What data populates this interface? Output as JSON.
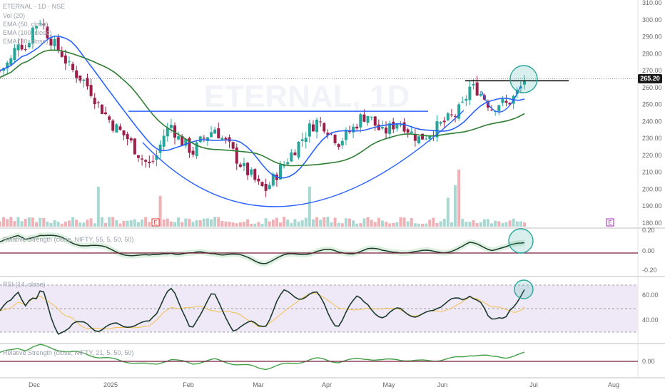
{
  "header": {
    "title": "ETERNAL · 1D · NSE",
    "indicators": [
      "Vol (20)",
      "EMA (50, close)",
      "EMA (100, close)",
      "EMA (30, close)"
    ]
  },
  "watermark": "ETERNAL, 1D",
  "last_price_label": "265.20",
  "colors": {
    "up": "#26a69a",
    "down": "#9c1f4b",
    "ema_blue": "#2962ff",
    "ema_green": "#2e7d32",
    "osc_line": "#1b3a2c",
    "osc_green_glow": "#c8e6c9",
    "osc_red": "#c2185b",
    "rsi_band": "#efe9f7",
    "rsi_ma": "#f2c14e"
  },
  "pane_labels": {
    "rs_top": "Relative Strength (close, NIFTY, 55, 5, 50, 50)",
    "rsi": "RSI (14, close)",
    "rs_bottom": "Relative Strength (close, NIFTY, 21, 5, 50, 50)"
  },
  "earnings_marker": "E",
  "chart_data": [
    {
      "type": "candlestick",
      "name": "price",
      "y_ticks": [
        "310.00",
        "300.00",
        "290.00",
        "280.00",
        "270.00",
        "260.00",
        "250.00",
        "240.00",
        "230.00",
        "220.00",
        "210.00",
        "200.00",
        "190.00",
        "180.00"
      ],
      "ylim": [
        176,
        313
      ],
      "x_ticks": [
        "Dec",
        "2025",
        "Feb",
        "Mar",
        "Apr",
        "May",
        "Jun",
        "Jul",
        "Aug"
      ],
      "last_price": 265.2,
      "close_path": [
        [
          0,
          270
        ],
        [
          6,
          276
        ],
        [
          10,
          288
        ],
        [
          14,
          283
        ],
        [
          18,
          295
        ],
        [
          22,
          300
        ],
        [
          26,
          292
        ],
        [
          30,
          285
        ],
        [
          34,
          280
        ],
        [
          38,
          272
        ],
        [
          42,
          268
        ],
        [
          46,
          264
        ],
        [
          50,
          258
        ],
        [
          54,
          250
        ],
        [
          58,
          244
        ],
        [
          62,
          238
        ],
        [
          66,
          234
        ],
        [
          70,
          230
        ],
        [
          74,
          224
        ],
        [
          78,
          218
        ],
        [
          82,
          214
        ],
        [
          86,
          220
        ],
        [
          90,
          232
        ],
        [
          94,
          238
        ],
        [
          98,
          230
        ],
        [
          102,
          226
        ],
        [
          106,
          222
        ],
        [
          110,
          228
        ],
        [
          114,
          232
        ],
        [
          118,
          236
        ],
        [
          122,
          230
        ],
        [
          126,
          225
        ],
        [
          130,
          218
        ],
        [
          134,
          212
        ],
        [
          138,
          208
        ],
        [
          142,
          202
        ],
        [
          146,
          200
        ],
        [
          150,
          206
        ],
        [
          154,
          212
        ],
        [
          158,
          218
        ],
        [
          162,
          224
        ],
        [
          166,
          230
        ],
        [
          170,
          236
        ],
        [
          174,
          240
        ],
        [
          178,
          238
        ],
        [
          182,
          233
        ],
        [
          186,
          228
        ],
        [
          190,
          232
        ],
        [
          194,
          236
        ],
        [
          198,
          242
        ],
        [
          202,
          244
        ],
        [
          206,
          238
        ],
        [
          210,
          233
        ],
        [
          214,
          236
        ],
        [
          218,
          240
        ],
        [
          222,
          238
        ],
        [
          226,
          233
        ],
        [
          230,
          230
        ],
        [
          234,
          232
        ],
        [
          238,
          235
        ],
        [
          242,
          238
        ],
        [
          246,
          241
        ],
        [
          250,
          244
        ],
        [
          254,
          249
        ],
        [
          258,
          260
        ],
        [
          262,
          259
        ],
        [
          266,
          254
        ],
        [
          270,
          248
        ],
        [
          274,
          251
        ],
        [
          278,
          250
        ],
        [
          282,
          254
        ],
        [
          286,
          260
        ],
        [
          288,
          265.2
        ]
      ],
      "horizontal_levels": [
        {
          "value": 246,
          "color": "blue"
        },
        {
          "value": 264,
          "color": "black"
        }
      ]
    },
    {
      "type": "bar",
      "name": "Vol (20)",
      "note": "volume histogram beneath price"
    },
    {
      "type": "line",
      "name": "Relative Strength 55",
      "y_ticks": [
        "0.20",
        "0.00",
        "-0.20"
      ],
      "ylim": [
        -0.25,
        0.25
      ]
    },
    {
      "type": "line",
      "name": "RSI 14",
      "y_ticks": [
        "60.00",
        "40.00"
      ],
      "ylim": [
        25,
        75
      ]
    },
    {
      "type": "line",
      "name": "Relative Strength 21",
      "y_ticks": [
        "0.00"
      ],
      "ylim": [
        -0.1,
        0.1
      ]
    }
  ]
}
